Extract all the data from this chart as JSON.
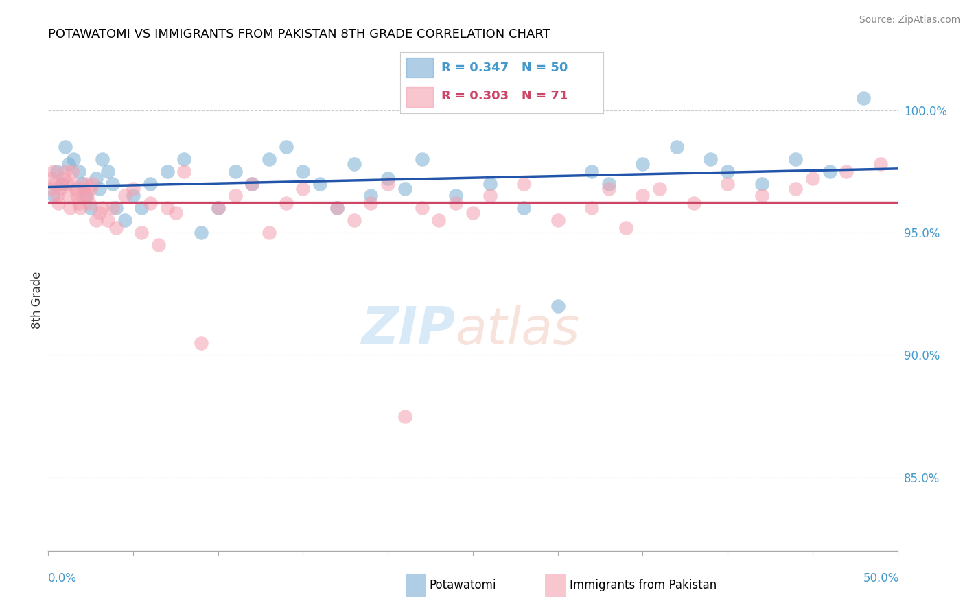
{
  "title": "POTAWATOMI VS IMMIGRANTS FROM PAKISTAN 8TH GRADE CORRELATION CHART",
  "source": "Source: ZipAtlas.com",
  "ylabel": "8th Grade",
  "xlim": [
    0.0,
    50.0
  ],
  "ylim": [
    82.0,
    102.5
  ],
  "yticks": [
    85.0,
    90.0,
    95.0,
    100.0
  ],
  "ytick_labels": [
    "85.0%",
    "90.0%",
    "95.0%",
    "100.0%"
  ],
  "blue_R": 0.347,
  "blue_N": 50,
  "pink_R": 0.303,
  "pink_N": 71,
  "blue_color": "#7aadd4",
  "pink_color": "#f4a0b0",
  "blue_line_color": "#2255aa",
  "pink_line_color": "#cc4466",
  "blue_scatter_x": [
    0.3,
    0.5,
    0.8,
    1.0,
    1.2,
    1.5,
    1.8,
    2.0,
    2.2,
    2.5,
    2.8,
    3.0,
    3.2,
    3.5,
    3.8,
    4.0,
    4.5,
    5.0,
    5.5,
    6.0,
    7.0,
    8.0,
    9.0,
    10.0,
    11.0,
    12.0,
    13.0,
    14.0,
    15.0,
    16.0,
    17.0,
    18.0,
    19.0,
    20.0,
    21.0,
    22.0,
    24.0,
    26.0,
    28.0,
    30.0,
    32.0,
    33.0,
    35.0,
    37.0,
    39.0,
    40.0,
    42.0,
    44.0,
    46.0,
    48.0
  ],
  "blue_scatter_y": [
    96.5,
    97.5,
    97.0,
    98.5,
    97.8,
    98.0,
    97.5,
    97.0,
    96.5,
    96.0,
    97.2,
    96.8,
    98.0,
    97.5,
    97.0,
    96.0,
    95.5,
    96.5,
    96.0,
    97.0,
    97.5,
    98.0,
    95.0,
    96.0,
    97.5,
    97.0,
    98.0,
    98.5,
    97.5,
    97.0,
    96.0,
    97.8,
    96.5,
    97.2,
    96.8,
    98.0,
    96.5,
    97.0,
    96.0,
    92.0,
    97.5,
    97.0,
    97.8,
    98.5,
    98.0,
    97.5,
    97.0,
    98.0,
    97.5,
    100.5
  ],
  "pink_scatter_x": [
    0.1,
    0.2,
    0.3,
    0.4,
    0.5,
    0.6,
    0.7,
    0.8,
    0.9,
    1.0,
    1.1,
    1.2,
    1.3,
    1.4,
    1.5,
    1.6,
    1.7,
    1.8,
    1.9,
    2.0,
    2.1,
    2.2,
    2.3,
    2.4,
    2.5,
    2.6,
    2.8,
    3.0,
    3.2,
    3.5,
    3.8,
    4.0,
    4.5,
    5.0,
    5.5,
    6.0,
    6.5,
    7.0,
    7.5,
    8.0,
    9.0,
    10.0,
    11.0,
    12.0,
    13.0,
    14.0,
    15.0,
    17.0,
    18.0,
    19.0,
    20.0,
    21.0,
    22.0,
    23.0,
    24.0,
    25.0,
    26.0,
    28.0,
    30.0,
    32.0,
    33.0,
    34.0,
    35.0,
    36.0,
    38.0,
    40.0,
    42.0,
    44.0,
    45.0,
    47.0,
    49.0
  ],
  "pink_scatter_y": [
    96.8,
    97.2,
    97.5,
    97.0,
    96.5,
    96.2,
    96.8,
    97.0,
    97.2,
    97.5,
    97.0,
    96.5,
    96.0,
    97.5,
    97.0,
    96.8,
    96.5,
    96.2,
    96.0,
    96.5,
    96.8,
    97.0,
    96.5,
    96.2,
    96.8,
    97.0,
    95.5,
    95.8,
    96.0,
    95.5,
    96.0,
    95.2,
    96.5,
    96.8,
    95.0,
    96.2,
    94.5,
    96.0,
    95.8,
    97.5,
    90.5,
    96.0,
    96.5,
    97.0,
    95.0,
    96.2,
    96.8,
    96.0,
    95.5,
    96.2,
    97.0,
    87.5,
    96.0,
    95.5,
    96.2,
    95.8,
    96.5,
    97.0,
    95.5,
    96.0,
    96.8,
    95.2,
    96.5,
    96.8,
    96.2,
    97.0,
    96.5,
    96.8,
    97.2,
    97.5,
    97.8
  ]
}
